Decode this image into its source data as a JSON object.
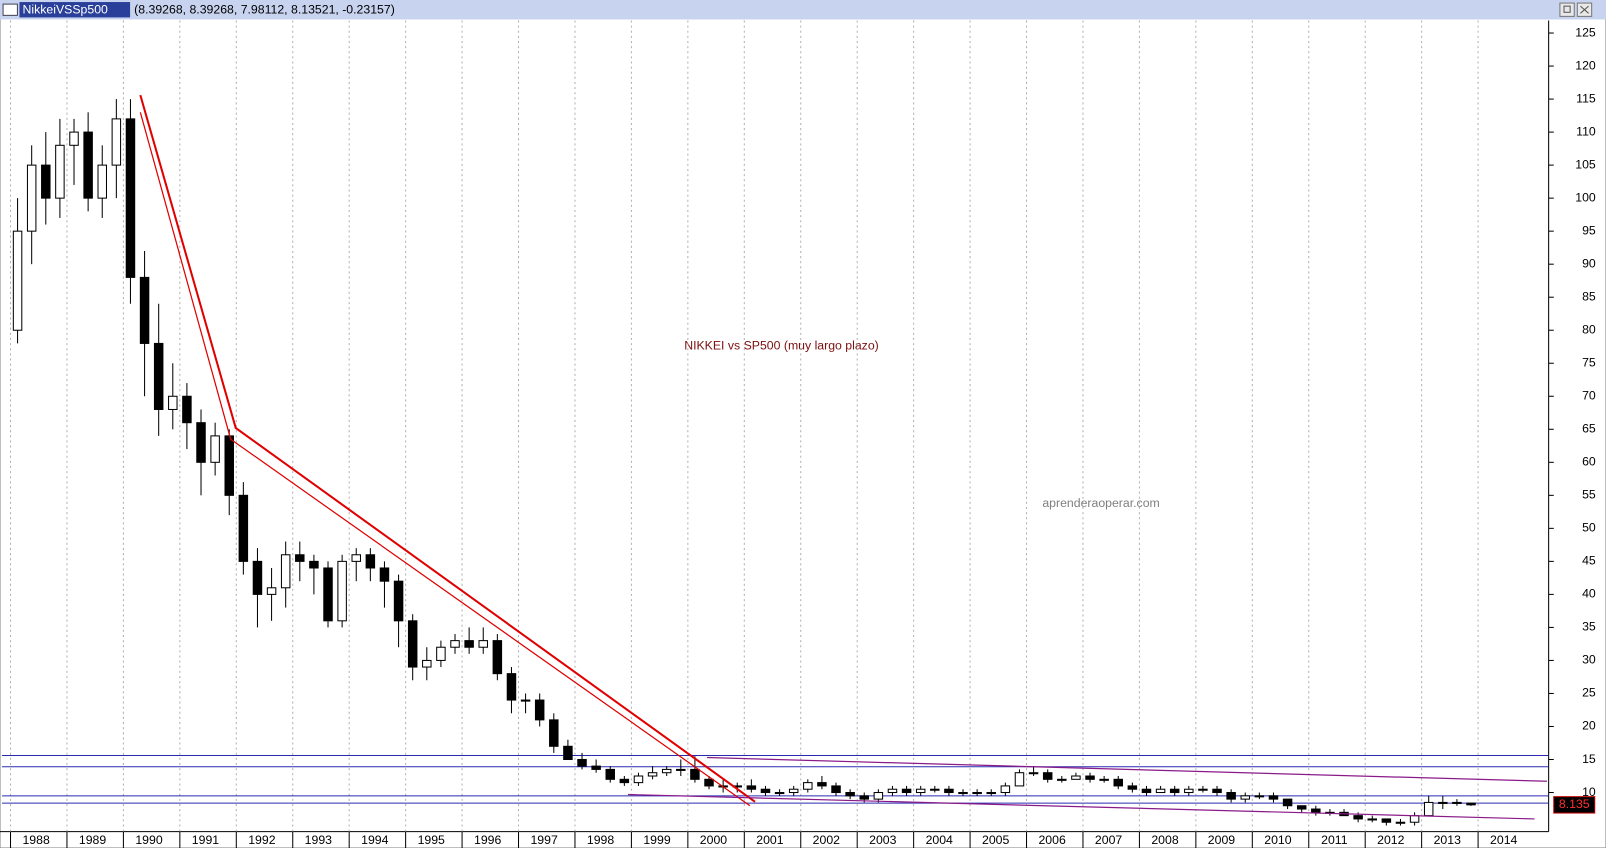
{
  "window_title": "NikkeiVSSp500",
  "header_values": "(8.39268, 8.39268, 7.98112, 8.13521, -0.23157)",
  "chart_data": {
    "type": "candlestick",
    "annotation": "NIKKEI vs SP500 (muy largo plazo)",
    "watermark": "aprenderaoperar.com",
    "last_value_label": "8.135",
    "x": [
      1988.125,
      1988.375,
      1988.625,
      1988.875,
      1989.125,
      1989.375,
      1989.625,
      1989.875,
      1990.125,
      1990.375,
      1990.625,
      1990.875,
      1991.125,
      1991.375,
      1991.625,
      1991.875,
      1992.125,
      1992.375,
      1992.625,
      1992.875,
      1993.125,
      1993.375,
      1993.625,
      1993.875,
      1994.125,
      1994.375,
      1994.625,
      1994.875,
      1995.125,
      1995.375,
      1995.625,
      1995.875,
      1996.125,
      1996.375,
      1996.625,
      1996.875,
      1997.125,
      1997.375,
      1997.625,
      1997.875,
      1998.125,
      1998.375,
      1998.625,
      1998.875,
      1999.125,
      1999.375,
      1999.625,
      1999.875,
      2000.125,
      2000.375,
      2000.625,
      2000.875,
      2001.125,
      2001.375,
      2001.625,
      2001.875,
      2002.125,
      2002.375,
      2002.625,
      2002.875,
      2003.125,
      2003.375,
      2003.625,
      2003.875,
      2004.125,
      2004.375,
      2004.625,
      2004.875,
      2005.125,
      2005.375,
      2005.625,
      2005.875,
      2006.125,
      2006.375,
      2006.625,
      2006.875,
      2007.125,
      2007.375,
      2007.625,
      2007.875,
      2008.125,
      2008.375,
      2008.625,
      2008.875,
      2009.125,
      2009.375,
      2009.625,
      2009.875,
      2010.125,
      2010.375,
      2010.625,
      2010.875,
      2011.125,
      2011.375,
      2011.625,
      2011.875,
      2012.125,
      2012.375,
      2012.625,
      2012.875,
      2013.125,
      2013.375,
      2013.625,
      2013.875
    ],
    "open": [
      80,
      95,
      105,
      100,
      108,
      110,
      100,
      105,
      112,
      88,
      78,
      68,
      70,
      66,
      60,
      64,
      55,
      45,
      40,
      41,
      46,
      45,
      44,
      36,
      45,
      46,
      44,
      42,
      36,
      29,
      30,
      32,
      33,
      32,
      33,
      28,
      24,
      24,
      21,
      17,
      15,
      14,
      13.5,
      12,
      11.5,
      12.5,
      13,
      13.5,
      13.5,
      12,
      11,
      11,
      11,
      10.5,
      10,
      10,
      10.5,
      11.5,
      11,
      10,
      9.5,
      9,
      10,
      10.5,
      10,
      10.5,
      10.5,
      10,
      10,
      10,
      10,
      11,
      13,
      13,
      12,
      12,
      12.5,
      12,
      12,
      11,
      10.5,
      10,
      10.5,
      10,
      10.5,
      10.5,
      10,
      9,
      9.5,
      9.5,
      9,
      8,
      7.5,
      7,
      7,
      6.5,
      6,
      6,
      5.5,
      5.5,
      6.5,
      8.5,
      8.5,
      8.39268
    ],
    "high": [
      100,
      108,
      110,
      112,
      112,
      113,
      108,
      115,
      115,
      92,
      84,
      75,
      72,
      68,
      66,
      65,
      57,
      47,
      44,
      48,
      48,
      46,
      45,
      46,
      47,
      47,
      45,
      43,
      37,
      32,
      33,
      34,
      35,
      35,
      34,
      29,
      25,
      25,
      22,
      18,
      16,
      15,
      14,
      12.5,
      13,
      14,
      14,
      15,
      15.5,
      12.5,
      12,
      11.5,
      12,
      11,
      10.5,
      11,
      12,
      12.5,
      11.5,
      10.5,
      10,
      10.5,
      11,
      11,
      11,
      11,
      11,
      10.5,
      10.5,
      10.5,
      11.5,
      13.5,
      14,
      13.5,
      12.5,
      13,
      13,
      12.5,
      12.5,
      11.5,
      11,
      11,
      11,
      11,
      11,
      11,
      10.5,
      10,
      10,
      10,
      9,
      8,
      8,
      7.5,
      7.5,
      7,
      6.5,
      6,
      6,
      7,
      9.5,
      9.5,
      9,
      8.39268
    ],
    "low": [
      78,
      90,
      96,
      97,
      102,
      98,
      97,
      100,
      84,
      70,
      64,
      65,
      62,
      55,
      58,
      52,
      43,
      35,
      36,
      38,
      42,
      40,
      35,
      35,
      42,
      42,
      38,
      32,
      27,
      27,
      29,
      31,
      31,
      31,
      27,
      22,
      22,
      20,
      16,
      15,
      13.5,
      13,
      11.5,
      11,
      11,
      12,
      12.5,
      12.5,
      11.5,
      10.5,
      10,
      10,
      10,
      9.5,
      9.5,
      9.5,
      10,
      10.5,
      9.5,
      9,
      8.5,
      8.5,
      9.5,
      9.5,
      9.5,
      10,
      9.5,
      9.5,
      9.5,
      9.5,
      9.5,
      11,
      12.5,
      11.5,
      11.5,
      12,
      11.5,
      11.5,
      10.5,
      10,
      9.5,
      10,
      9.5,
      9.5,
      10,
      9.5,
      8.5,
      8.5,
      9,
      8.5,
      7.5,
      7,
      6.5,
      6.5,
      6.5,
      5.5,
      5.5,
      5,
      5,
      5,
      6.5,
      7.5,
      8,
      7.98112
    ],
    "close": [
      95,
      105,
      100,
      108,
      110,
      100,
      105,
      112,
      88,
      78,
      68,
      70,
      66,
      60,
      64,
      55,
      45,
      40,
      41,
      46,
      45,
      44,
      36,
      45,
      46,
      44,
      42,
      36,
      29,
      30,
      32,
      33,
      32,
      33,
      28,
      24,
      24,
      21,
      17,
      15,
      14,
      13.5,
      12,
      11.5,
      12.5,
      13,
      13.5,
      13.5,
      12,
      11,
      11,
      11,
      10.5,
      10,
      10,
      10.5,
      11.5,
      11,
      10,
      9.5,
      9,
      10,
      10.5,
      10,
      10.5,
      10.5,
      10,
      10,
      10,
      10,
      11,
      13,
      13,
      12,
      12,
      12.5,
      12,
      12,
      11,
      10.5,
      10,
      10.5,
      10,
      10.5,
      10.5,
      10,
      9,
      9.5,
      9.5,
      9,
      8,
      7.5,
      7,
      7,
      6.5,
      6,
      6,
      5.5,
      5.5,
      6.5,
      8.5,
      8.5,
      8.5,
      8.13521
    ],
    "xlim": [
      1987.85,
      2015.25
    ],
    "ylim": [
      1.6,
      126.9
    ],
    "xticks": [
      1988,
      1989,
      1990,
      1991,
      1992,
      1993,
      1994,
      1995,
      1996,
      1997,
      1998,
      1999,
      2000,
      2001,
      2002,
      2003,
      2004,
      2005,
      2006,
      2007,
      2008,
      2009,
      2010,
      2011,
      2012,
      2013,
      2014
    ],
    "yticks": [
      10,
      15,
      20,
      25,
      30,
      35,
      40,
      45,
      50,
      55,
      60,
      65,
      70,
      75,
      80,
      85,
      90,
      95,
      100,
      105,
      110,
      115,
      120,
      125
    ],
    "grid": true,
    "hlines": {
      "color": "#2a2ab0",
      "values": [
        15.6,
        13.9,
        9.5,
        8.4
      ]
    },
    "lines": [
      {
        "color": "#e00000",
        "x": [
          1990.3,
          1991.99,
          2001.19
        ],
        "y": [
          115.6,
          65.2,
          8.6
        ]
      },
      {
        "color": "#e00000",
        "x": [
          1990.3,
          1991.9,
          2001.1
        ],
        "y": [
          113,
          63.5,
          8
        ]
      },
      {
        "color": "#8a1a8a",
        "x": [
          2000.34,
          2015.22
        ],
        "y": [
          15.3,
          11.7
        ]
      },
      {
        "color": "#8a1a8a",
        "x": [
          1998.94,
          2015.0
        ],
        "y": [
          9.7,
          6.0
        ]
      }
    ]
  }
}
